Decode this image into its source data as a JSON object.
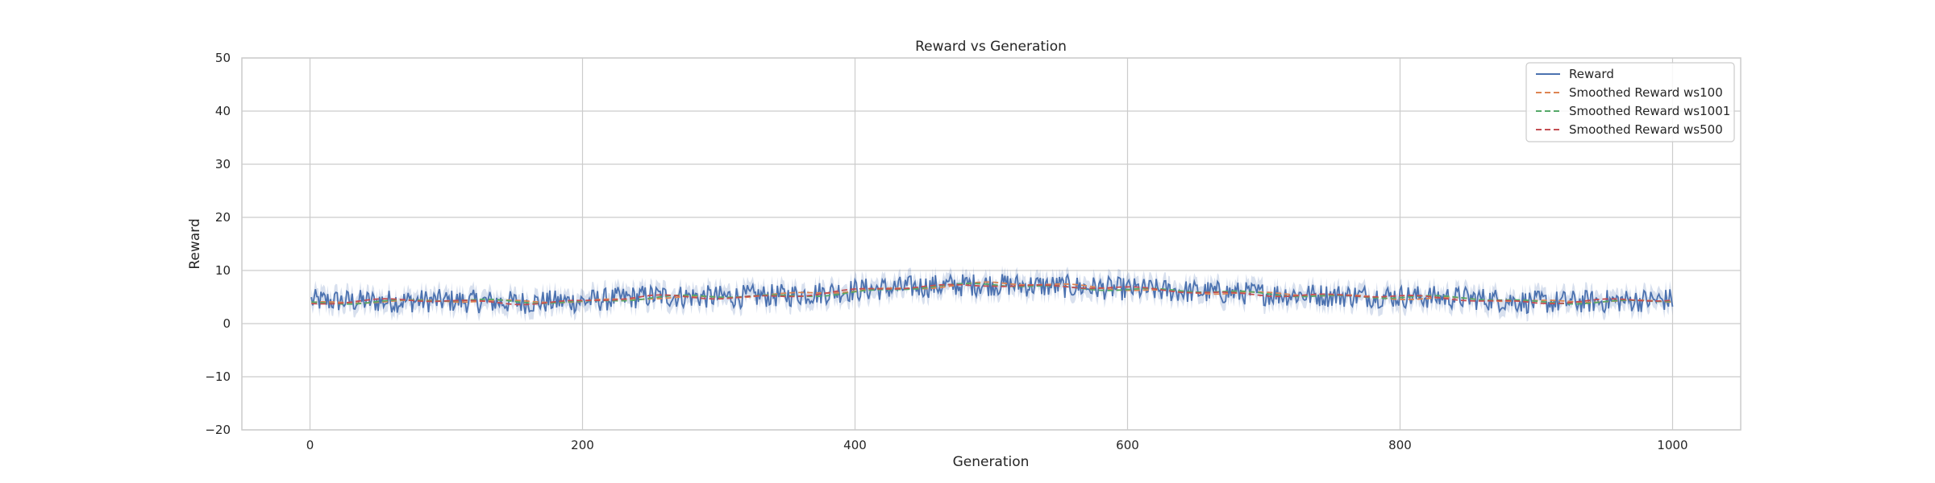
{
  "chart_data": {
    "type": "line",
    "title": "Reward vs Generation",
    "xlabel": "Generation",
    "ylabel": "Reward",
    "xlim": [
      -50,
      1050
    ],
    "ylim": [
      -20,
      50
    ],
    "x_ticks": [
      0,
      200,
      400,
      600,
      800,
      1000
    ],
    "y_ticks": [
      -20,
      -10,
      0,
      10,
      20,
      30,
      40,
      50
    ],
    "grid": true,
    "legend_position": "top-right",
    "x_range": [
      1,
      1000
    ],
    "band_halfwidth": 1.6,
    "series": [
      {
        "name": "Reward",
        "style": "solid",
        "color": "#4c72b0",
        "anchors": [
          [
            1,
            4.3
          ],
          [
            50,
            4.2
          ],
          [
            100,
            4.3
          ],
          [
            150,
            4.0
          ],
          [
            200,
            4.2
          ],
          [
            250,
            5.2
          ],
          [
            300,
            5.0
          ],
          [
            350,
            5.3
          ],
          [
            400,
            6.3
          ],
          [
            450,
            7.0
          ],
          [
            500,
            7.4
          ],
          [
            550,
            7.0
          ],
          [
            600,
            6.5
          ],
          [
            650,
            6.0
          ],
          [
            700,
            5.6
          ],
          [
            750,
            5.3
          ],
          [
            800,
            5.1
          ],
          [
            850,
            4.8
          ],
          [
            900,
            4.0
          ],
          [
            950,
            4.2
          ],
          [
            1000,
            4.5
          ]
        ],
        "noise_amplitude": 2.2
      },
      {
        "name": "Smoothed Reward ws100",
        "style": "dashed",
        "color": "#dd8452",
        "anchors": [
          [
            1,
            3.6
          ],
          [
            50,
            4.3
          ],
          [
            100,
            4.5
          ],
          [
            150,
            4.0
          ],
          [
            200,
            4.0
          ],
          [
            250,
            5.1
          ],
          [
            300,
            5.0
          ],
          [
            350,
            5.3
          ],
          [
            400,
            6.2
          ],
          [
            450,
            7.0
          ],
          [
            500,
            7.6
          ],
          [
            550,
            7.1
          ],
          [
            600,
            6.6
          ],
          [
            650,
            6.0
          ],
          [
            700,
            5.5
          ],
          [
            750,
            5.2
          ],
          [
            800,
            5.0
          ],
          [
            850,
            4.7
          ],
          [
            900,
            3.9
          ],
          [
            950,
            4.3
          ],
          [
            1000,
            4.4
          ]
        ]
      },
      {
        "name": "Smoothed Reward ws1001",
        "style": "dashed",
        "color": "#55a868",
        "anchors": [
          [
            1,
            4.0
          ],
          [
            50,
            4.2
          ],
          [
            100,
            4.3
          ],
          [
            150,
            4.1
          ],
          [
            200,
            4.2
          ],
          [
            250,
            4.9
          ],
          [
            300,
            5.0
          ],
          [
            350,
            5.2
          ],
          [
            400,
            6.0
          ],
          [
            450,
            6.8
          ],
          [
            500,
            7.3
          ],
          [
            550,
            7.0
          ],
          [
            600,
            6.5
          ],
          [
            650,
            6.0
          ],
          [
            700,
            5.6
          ],
          [
            750,
            5.3
          ],
          [
            800,
            5.0
          ],
          [
            850,
            4.7
          ],
          [
            900,
            4.1
          ],
          [
            950,
            4.2
          ],
          [
            1000,
            4.3
          ]
        ]
      },
      {
        "name": "Smoothed Reward ws500",
        "style": "dashed",
        "color": "#c44e52",
        "anchors": [
          [
            1,
            3.8
          ],
          [
            50,
            4.2
          ],
          [
            100,
            4.4
          ],
          [
            150,
            4.0
          ],
          [
            200,
            4.1
          ],
          [
            250,
            5.0
          ],
          [
            300,
            5.0
          ],
          [
            350,
            5.3
          ],
          [
            400,
            6.1
          ],
          [
            450,
            6.9
          ],
          [
            500,
            7.5
          ],
          [
            550,
            7.0
          ],
          [
            600,
            6.5
          ],
          [
            650,
            6.0
          ],
          [
            700,
            5.6
          ],
          [
            750,
            5.2
          ],
          [
            800,
            5.0
          ],
          [
            850,
            4.7
          ],
          [
            900,
            4.0
          ],
          [
            950,
            4.2
          ],
          [
            1000,
            4.4
          ]
        ]
      }
    ]
  }
}
